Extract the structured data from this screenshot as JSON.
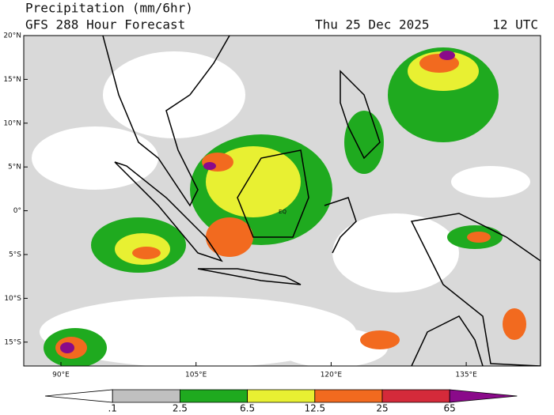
{
  "header": {
    "title": "Precipitation (mm/6hr)",
    "subtitle": "GFS 288 Hour Forecast",
    "date": "Thu 25 Dec 2025",
    "time": "12 UTC"
  },
  "map": {
    "lat_labels": [
      "20°N",
      "15°N",
      "10°N",
      "5°N",
      "0°",
      "5°S",
      "10°S",
      "15°S"
    ],
    "lon_labels": [
      "90°E",
      "105°E",
      "120°E",
      "135°E"
    ],
    "annotation": "EQ"
  },
  "colorbar": {
    "labels": [
      ".1",
      "2.5",
      "6.5",
      "12.5",
      "25",
      "65"
    ],
    "colors": [
      "#ffffff",
      "#c0c0c0",
      "#1faa1f",
      "#e8f032",
      "#f26a1f",
      "#d42a3a",
      "#8a0a8a"
    ]
  }
}
